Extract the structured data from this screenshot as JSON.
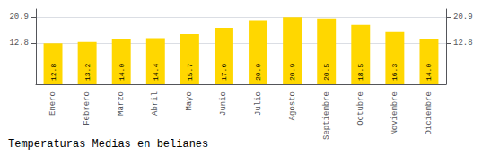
{
  "chart_data": {
    "type": "bar",
    "title": "Temperaturas Medias en belianes",
    "categories": [
      "Enero",
      "Febrero",
      "Marzo",
      "Abril",
      "Mayo",
      "Junio",
      "Julio",
      "Agosto",
      "Septiembre",
      "Octubre",
      "Noviembre",
      "Diciembre"
    ],
    "values": [
      12.8,
      13.2,
      14.0,
      14.4,
      15.7,
      17.6,
      20.0,
      20.9,
      20.5,
      18.5,
      16.3,
      14.0
    ],
    "value_labels": [
      "12.8",
      "13.2",
      "14.0",
      "14.4",
      "15.7",
      "17.6",
      "20.0",
      "20.9",
      "20.5",
      "18.5",
      "16.3",
      "14.0"
    ],
    "data_labels": true,
    "color": "#FFD700",
    "ylim": [
      0.0,
      23.5
    ],
    "yticks": [
      12.8,
      20.9
    ],
    "grid": true
  }
}
